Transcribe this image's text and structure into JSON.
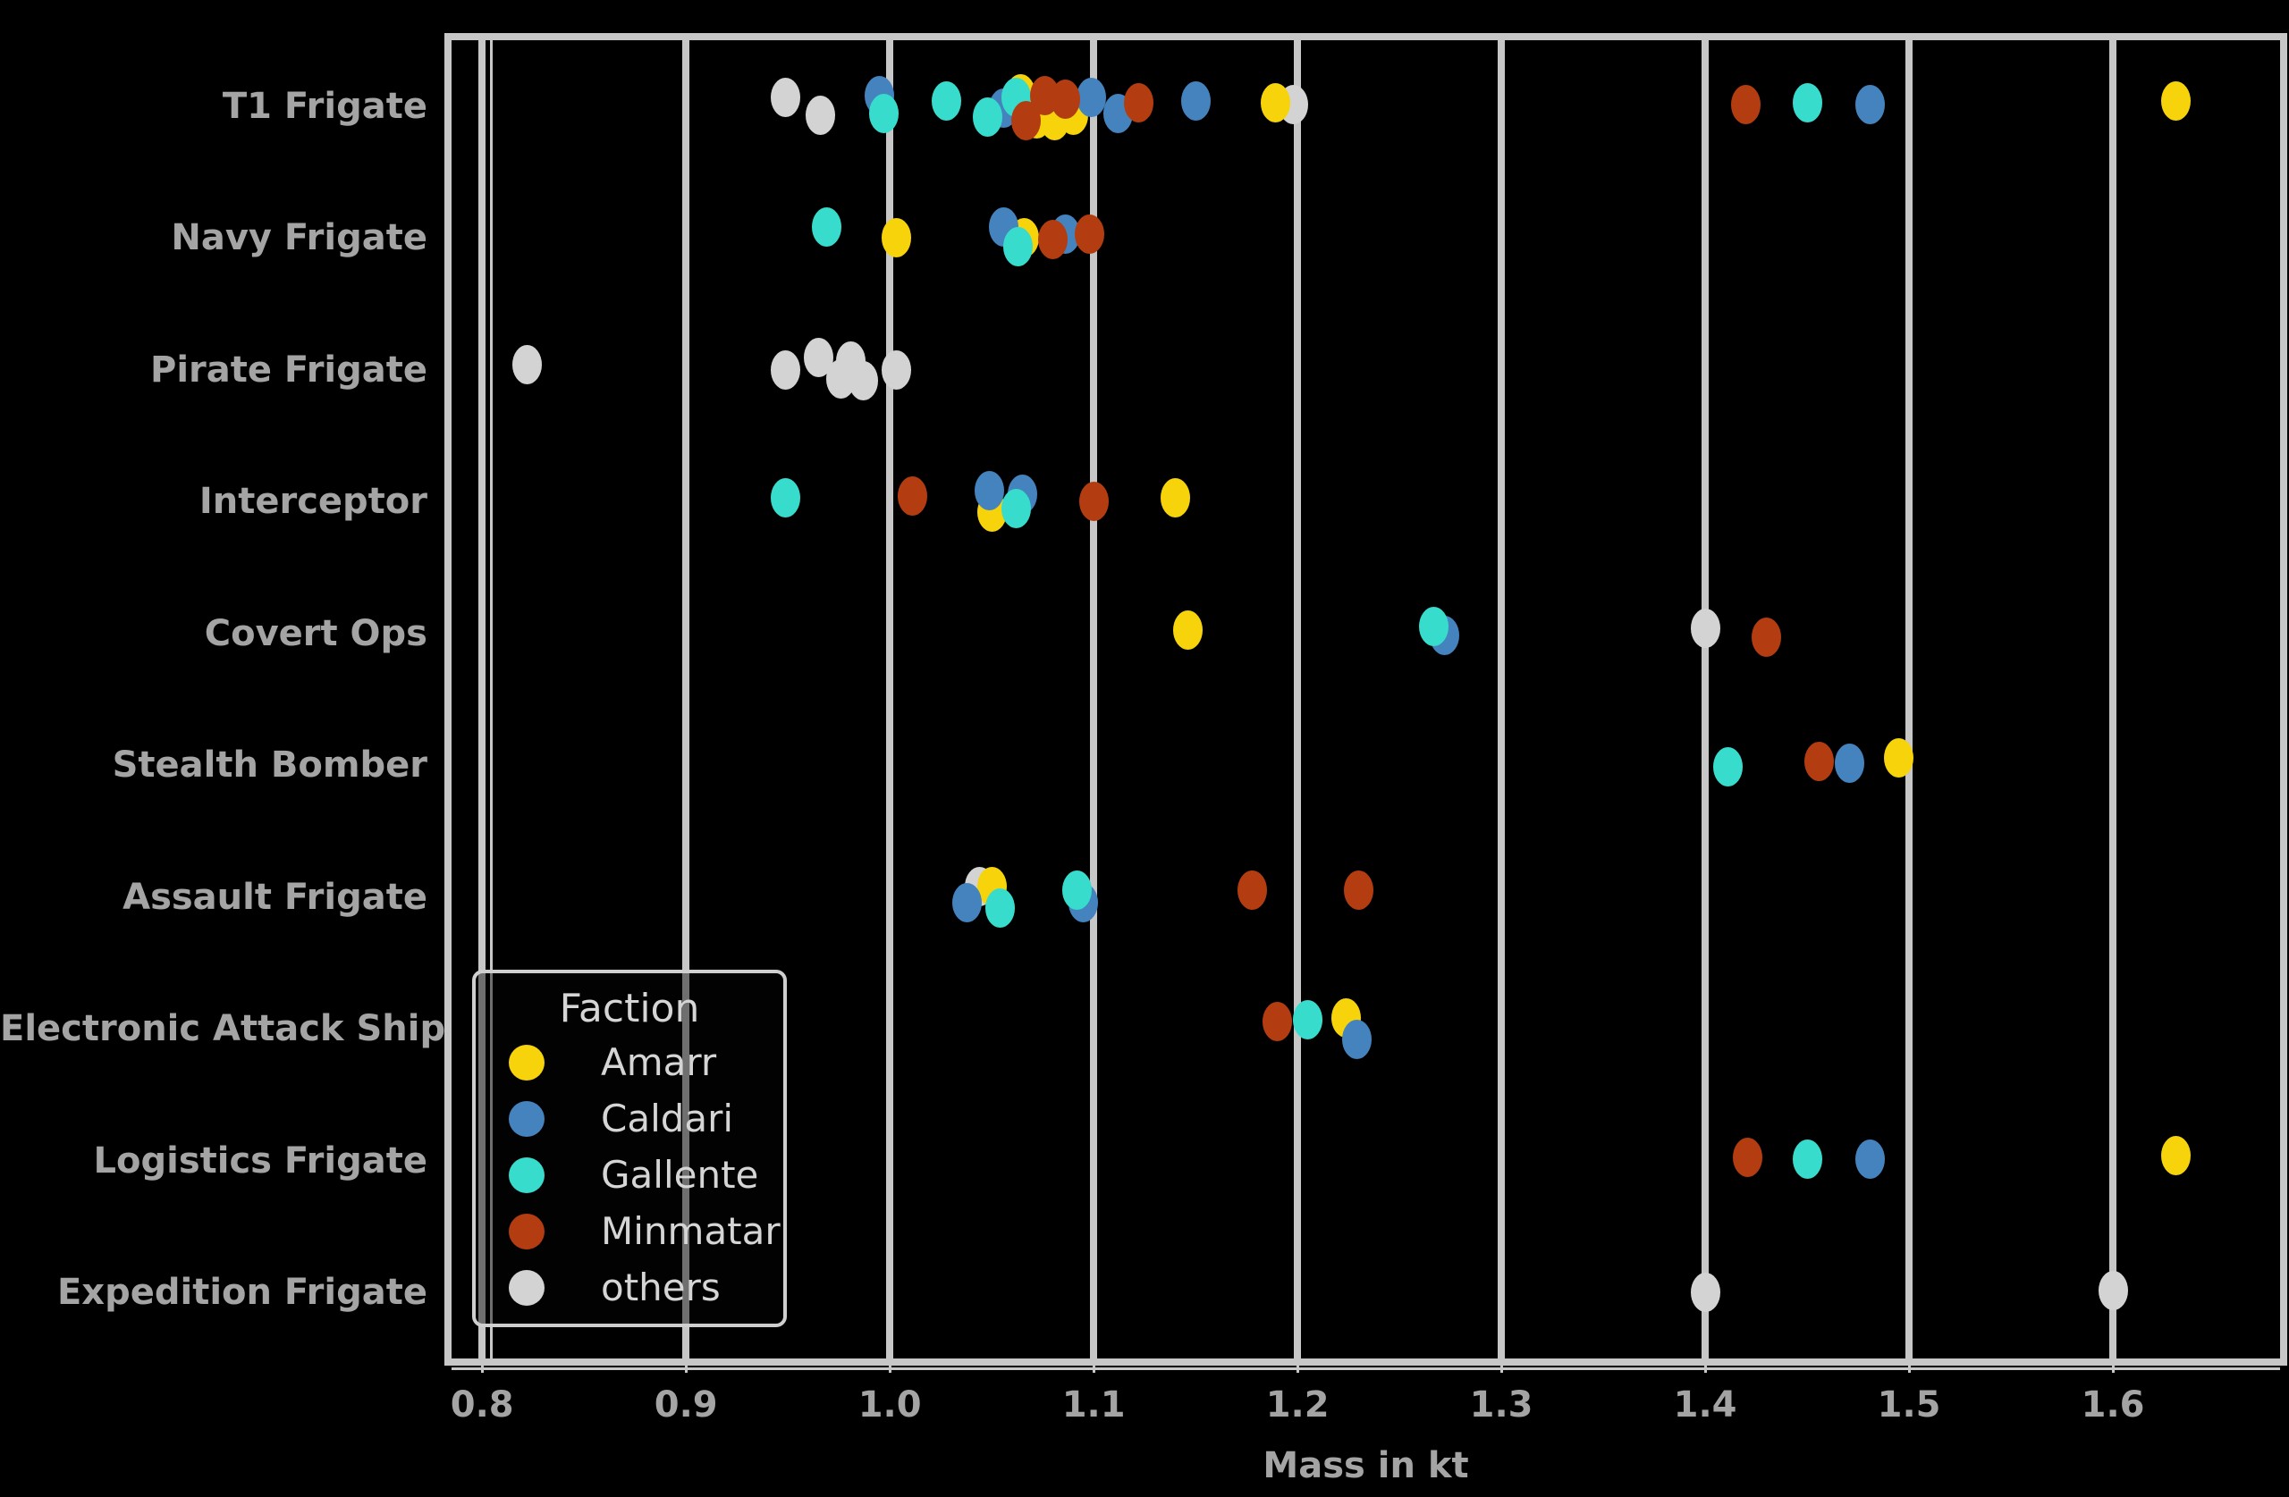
{
  "figure": {
    "background": "#000000",
    "frame_color": "#C7C7C7",
    "text_color": "#A4A4A4",
    "legend_text_color": "#D5D5D5"
  },
  "chart_data": {
    "type": "scatter",
    "variant": "strip-plot",
    "title": "",
    "xlabel": "Mass in kt",
    "x_ticks": [
      "0.8",
      "0.9",
      "1.0",
      "1.1",
      "1.2",
      "1.3",
      "1.4",
      "1.5",
      "1.6"
    ],
    "x_tick_values": [
      0.8,
      0.9,
      1.0,
      1.1,
      1.2,
      1.3,
      1.4,
      1.5,
      1.6
    ],
    "x_range": [
      0.785,
      1.682
    ],
    "grid": "vertical-major-on",
    "categories": [
      "T1 Frigate",
      "Navy Frigate",
      "Pirate Frigate",
      "Interceptor",
      "Covert Ops",
      "Stealth Bomber",
      "Assault Frigate",
      "Electronic Attack Ship",
      "Logistics Frigate",
      "Expedition Frigate"
    ],
    "legend": {
      "title": "Faction",
      "position": "lower-left",
      "entries": [
        {
          "label": "Amarr",
          "color": "#F6D30B"
        },
        {
          "label": "Caldari",
          "color": "#4483BD"
        },
        {
          "label": "Gallente",
          "color": "#37DCCD"
        },
        {
          "label": "Minmatar",
          "color": "#B33D10"
        },
        {
          "label": "others",
          "color": "#D3D3D3"
        }
      ]
    },
    "series": [
      {
        "name": "others",
        "color": "#D3D3D3",
        "points": [
          [
            0,
            0.949,
            -10
          ],
          [
            0,
            0.966,
            10
          ],
          [
            0,
            1.198,
            -2
          ],
          [
            2,
            0.822,
            -6
          ],
          [
            2,
            0.949,
            0
          ],
          [
            2,
            0.965,
            -14
          ],
          [
            2,
            0.976,
            10
          ],
          [
            2,
            0.981,
            -10
          ],
          [
            2,
            0.987,
            12
          ],
          [
            2,
            1.003,
            0
          ],
          [
            4,
            1.4,
            -6
          ],
          [
            6,
            1.044,
            -12
          ],
          [
            9,
            1.4,
            0
          ],
          [
            9,
            1.6,
            -2
          ]
        ]
      },
      {
        "name": "Amarr",
        "color": "#F6D30B",
        "points": [
          [
            0,
            1.064,
            -14
          ],
          [
            0,
            1.072,
            14
          ],
          [
            0,
            1.081,
            16
          ],
          [
            0,
            1.09,
            10
          ],
          [
            0,
            1.189,
            -4
          ],
          [
            0,
            1.631,
            -6
          ],
          [
            1,
            1.003,
            0
          ],
          [
            1,
            1.066,
            0
          ],
          [
            3,
            1.05,
            12
          ],
          [
            3,
            1.14,
            -4
          ],
          [
            4,
            1.146,
            -4
          ],
          [
            5,
            1.495,
            -8
          ],
          [
            6,
            1.05,
            -12
          ],
          [
            7,
            1.224,
            -12
          ],
          [
            8,
            1.631,
            -6
          ]
        ]
      },
      {
        "name": "Caldari",
        "color": "#4483BD",
        "points": [
          [
            0,
            0.995,
            -12
          ],
          [
            0,
            1.056,
            2
          ],
          [
            0,
            1.099,
            -10
          ],
          [
            0,
            1.112,
            8
          ],
          [
            0,
            1.15,
            -6
          ],
          [
            0,
            1.481,
            -2
          ],
          [
            1,
            1.056,
            -12
          ],
          [
            1,
            1.086,
            -4
          ],
          [
            3,
            1.049,
            -12
          ],
          [
            3,
            1.065,
            -8
          ],
          [
            4,
            1.272,
            2
          ],
          [
            5,
            1.471,
            -2
          ],
          [
            6,
            1.038,
            6
          ],
          [
            6,
            1.095,
            6
          ],
          [
            7,
            1.229,
            12
          ],
          [
            8,
            1.481,
            -2
          ]
        ]
      },
      {
        "name": "Gallente",
        "color": "#37DCCD",
        "points": [
          [
            0,
            0.997,
            8
          ],
          [
            0,
            1.028,
            -6
          ],
          [
            0,
            1.048,
            12
          ],
          [
            0,
            1.062,
            -10
          ],
          [
            0,
            1.45,
            -4
          ],
          [
            1,
            0.969,
            -12
          ],
          [
            1,
            1.063,
            10
          ],
          [
            3,
            0.949,
            -4
          ],
          [
            3,
            1.062,
            8
          ],
          [
            4,
            1.267,
            -8
          ],
          [
            5,
            1.411,
            2
          ],
          [
            6,
            1.054,
            12
          ],
          [
            6,
            1.092,
            -8
          ],
          [
            7,
            1.205,
            -10
          ],
          [
            8,
            1.45,
            -2
          ]
        ]
      },
      {
        "name": "Minmatar",
        "color": "#B33D10",
        "points": [
          [
            0,
            1.067,
            16
          ],
          [
            0,
            1.076,
            -12
          ],
          [
            0,
            1.086,
            -8
          ],
          [
            0,
            1.122,
            -4
          ],
          [
            0,
            1.42,
            -2
          ],
          [
            1,
            1.08,
            2
          ],
          [
            1,
            1.098,
            -4
          ],
          [
            3,
            1.011,
            -6
          ],
          [
            3,
            1.1,
            0
          ],
          [
            4,
            1.43,
            4
          ],
          [
            5,
            1.456,
            -4
          ],
          [
            6,
            1.178,
            -8
          ],
          [
            6,
            1.23,
            -8
          ],
          [
            7,
            1.19,
            -8
          ],
          [
            8,
            1.421,
            -4
          ]
        ]
      }
    ]
  }
}
